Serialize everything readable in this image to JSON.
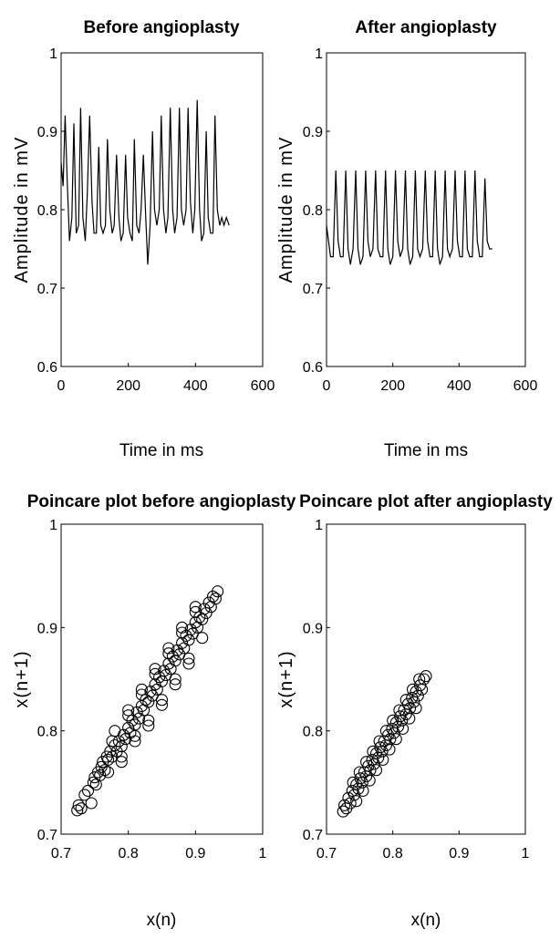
{
  "chart_data": [
    {
      "id": "before-signal",
      "type": "line",
      "title": "Before angioplasty",
      "xlabel": "Time in ms",
      "ylabel": "Amplitude in mV",
      "xlim": [
        0,
        600
      ],
      "ylim": [
        0.6,
        1
      ],
      "xticks": [
        "0",
        "200",
        "400",
        "600"
      ],
      "yticks": [
        "0.6",
        "0.7",
        "0.8",
        "0.9",
        "1"
      ],
      "grid": false,
      "series": [
        {
          "x": [
            0,
            6,
            12,
            18,
            25,
            32,
            38,
            45,
            52,
            58,
            65,
            72,
            78,
            85,
            92,
            98,
            105,
            112,
            118,
            125,
            132,
            138,
            145,
            152,
            158,
            165,
            172,
            178,
            185,
            192,
            198,
            205,
            212,
            218,
            225,
            232,
            238,
            245,
            252,
            258,
            265,
            272,
            278,
            285,
            292,
            298,
            305,
            312,
            318,
            325,
            332,
            338,
            345,
            352,
            358,
            365,
            372,
            378,
            385,
            392,
            398,
            405,
            412,
            418,
            425,
            432,
            438,
            445,
            452,
            458,
            465,
            472,
            478,
            485,
            492,
            500
          ],
          "y": [
            0.86,
            0.83,
            0.92,
            0.84,
            0.76,
            0.79,
            0.91,
            0.77,
            0.78,
            0.93,
            0.79,
            0.76,
            0.82,
            0.92,
            0.81,
            0.77,
            0.77,
            0.88,
            0.78,
            0.77,
            0.78,
            0.89,
            0.8,
            0.77,
            0.78,
            0.87,
            0.79,
            0.76,
            0.77,
            0.87,
            0.79,
            0.77,
            0.76,
            0.89,
            0.78,
            0.77,
            0.8,
            0.87,
            0.79,
            0.73,
            0.78,
            0.9,
            0.8,
            0.78,
            0.8,
            0.92,
            0.8,
            0.77,
            0.79,
            0.93,
            0.8,
            0.77,
            0.79,
            0.93,
            0.8,
            0.78,
            0.8,
            0.93,
            0.81,
            0.77,
            0.8,
            0.94,
            0.8,
            0.76,
            0.77,
            0.9,
            0.79,
            0.77,
            0.77,
            0.92,
            0.8,
            0.78,
            0.79,
            0.78,
            0.79,
            0.78
          ]
        }
      ]
    },
    {
      "id": "after-signal",
      "type": "line",
      "title": "After angioplasty",
      "xlabel": "Time in ms",
      "ylabel": "Amplitude in mV",
      "xlim": [
        0,
        600
      ],
      "ylim": [
        0.6,
        1
      ],
      "xticks": [
        "0",
        "200",
        "400",
        "600"
      ],
      "yticks": [
        "0.6",
        "0.7",
        "0.8",
        "0.9",
        "1"
      ],
      "grid": false,
      "series": [
        {
          "x": [
            0,
            6,
            12,
            20,
            28,
            35,
            42,
            50,
            58,
            65,
            72,
            80,
            88,
            95,
            102,
            110,
            118,
            125,
            132,
            140,
            148,
            155,
            162,
            170,
            178,
            185,
            192,
            200,
            208,
            215,
            222,
            230,
            238,
            245,
            252,
            260,
            268,
            275,
            282,
            290,
            298,
            305,
            312,
            320,
            328,
            335,
            342,
            350,
            358,
            365,
            372,
            380,
            388,
            395,
            402,
            410,
            418,
            425,
            432,
            440,
            448,
            455,
            462,
            470,
            478,
            485,
            492,
            500
          ],
          "y": [
            0.78,
            0.76,
            0.74,
            0.74,
            0.85,
            0.76,
            0.74,
            0.74,
            0.85,
            0.75,
            0.73,
            0.75,
            0.85,
            0.75,
            0.73,
            0.74,
            0.85,
            0.76,
            0.74,
            0.75,
            0.85,
            0.75,
            0.74,
            0.74,
            0.85,
            0.75,
            0.73,
            0.74,
            0.85,
            0.76,
            0.74,
            0.75,
            0.85,
            0.75,
            0.73,
            0.74,
            0.85,
            0.75,
            0.74,
            0.75,
            0.85,
            0.76,
            0.74,
            0.74,
            0.85,
            0.75,
            0.73,
            0.74,
            0.85,
            0.75,
            0.74,
            0.75,
            0.85,
            0.76,
            0.74,
            0.74,
            0.85,
            0.75,
            0.74,
            0.74,
            0.85,
            0.76,
            0.74,
            0.74,
            0.84,
            0.76,
            0.75,
            0.75
          ]
        }
      ]
    },
    {
      "id": "before-poincare",
      "type": "scatter",
      "title": "Poincare plot before angioplasty",
      "xlabel": "x(n)",
      "ylabel": "x(n+1)",
      "xlim": [
        0.7,
        1
      ],
      "ylim": [
        0.7,
        1
      ],
      "xticks": [
        "0.7",
        "0.8",
        "0.9",
        "1"
      ],
      "yticks": [
        "0.7",
        "0.8",
        "0.9",
        "1"
      ],
      "grid": false,
      "marker": "circle",
      "series": [
        {
          "x": [
            0.724,
            0.726,
            0.73,
            0.735,
            0.74,
            0.745,
            0.748,
            0.75,
            0.752,
            0.755,
            0.758,
            0.76,
            0.762,
            0.765,
            0.768,
            0.77,
            0.773,
            0.776,
            0.78,
            0.783,
            0.786,
            0.79,
            0.793,
            0.796,
            0.8,
            0.803,
            0.806,
            0.81,
            0.813,
            0.816,
            0.82,
            0.823,
            0.826,
            0.83,
            0.833,
            0.836,
            0.84,
            0.843,
            0.846,
            0.85,
            0.853,
            0.856,
            0.86,
            0.863,
            0.866,
            0.87,
            0.873,
            0.876,
            0.88,
            0.883,
            0.886,
            0.89,
            0.893,
            0.896,
            0.9,
            0.903,
            0.906,
            0.91,
            0.913,
            0.916,
            0.92,
            0.923,
            0.926,
            0.93,
            0.933,
            0.776,
            0.79,
            0.8,
            0.81,
            0.82,
            0.83,
            0.84,
            0.85,
            0.86,
            0.87,
            0.88,
            0.89,
            0.9,
            0.91,
            0.77,
            0.78,
            0.79,
            0.8,
            0.81,
            0.82,
            0.83,
            0.84,
            0.85,
            0.86,
            0.87,
            0.88,
            0.89,
            0.9
          ],
          "y": [
            0.723,
            0.728,
            0.725,
            0.738,
            0.742,
            0.73,
            0.75,
            0.755,
            0.748,
            0.76,
            0.757,
            0.765,
            0.77,
            0.762,
            0.775,
            0.772,
            0.78,
            0.775,
            0.786,
            0.78,
            0.79,
            0.785,
            0.796,
            0.792,
            0.803,
            0.798,
            0.81,
            0.806,
            0.818,
            0.812,
            0.824,
            0.82,
            0.83,
            0.828,
            0.838,
            0.834,
            0.845,
            0.84,
            0.852,
            0.848,
            0.858,
            0.854,
            0.865,
            0.86,
            0.872,
            0.868,
            0.878,
            0.874,
            0.885,
            0.88,
            0.892,
            0.888,
            0.898,
            0.894,
            0.905,
            0.9,
            0.91,
            0.908,
            0.918,
            0.914,
            0.924,
            0.92,
            0.93,
            0.928,
            0.935,
            0.79,
            0.775,
            0.815,
            0.795,
            0.835,
            0.81,
            0.855,
            0.83,
            0.875,
            0.85,
            0.895,
            0.87,
            0.915,
            0.89,
            0.76,
            0.8,
            0.77,
            0.82,
            0.79,
            0.84,
            0.805,
            0.86,
            0.825,
            0.88,
            0.845,
            0.9,
            0.865,
            0.92
          ]
        }
      ]
    },
    {
      "id": "after-poincare",
      "type": "scatter",
      "title": "Poincare plot after angioplasty",
      "xlabel": "x(n)",
      "ylabel": "x(n+1)",
      "xlim": [
        0.7,
        1
      ],
      "ylim": [
        0.7,
        1
      ],
      "xticks": [
        "0.7",
        "0.8",
        "0.9",
        "1"
      ],
      "yticks": [
        "0.7",
        "0.8",
        "0.9",
        "1"
      ],
      "grid": false,
      "marker": "circle",
      "series": [
        {
          "x": [
            0.725,
            0.727,
            0.73,
            0.733,
            0.736,
            0.739,
            0.742,
            0.745,
            0.748,
            0.751,
            0.754,
            0.757,
            0.76,
            0.763,
            0.766,
            0.769,
            0.772,
            0.775,
            0.778,
            0.781,
            0.784,
            0.787,
            0.79,
            0.793,
            0.796,
            0.799,
            0.802,
            0.805,
            0.808,
            0.811,
            0.814,
            0.817,
            0.82,
            0.823,
            0.826,
            0.829,
            0.832,
            0.835,
            0.838,
            0.841,
            0.844,
            0.847,
            0.85,
            0.74,
            0.75,
            0.76,
            0.77,
            0.78,
            0.79,
            0.8,
            0.81,
            0.82,
            0.83,
            0.84,
            0.745,
            0.755,
            0.765,
            0.775,
            0.785,
            0.795,
            0.805,
            0.815,
            0.825,
            0.835
          ],
          "y": [
            0.722,
            0.728,
            0.725,
            0.735,
            0.73,
            0.742,
            0.738,
            0.748,
            0.744,
            0.754,
            0.75,
            0.76,
            0.756,
            0.766,
            0.762,
            0.772,
            0.768,
            0.778,
            0.774,
            0.784,
            0.78,
            0.79,
            0.786,
            0.796,
            0.792,
            0.802,
            0.798,
            0.808,
            0.804,
            0.814,
            0.81,
            0.82,
            0.816,
            0.826,
            0.822,
            0.832,
            0.828,
            0.838,
            0.834,
            0.844,
            0.84,
            0.85,
            0.853,
            0.75,
            0.76,
            0.77,
            0.78,
            0.79,
            0.8,
            0.81,
            0.82,
            0.83,
            0.84,
            0.85,
            0.732,
            0.742,
            0.752,
            0.762,
            0.772,
            0.782,
            0.792,
            0.802,
            0.812,
            0.822
          ]
        }
      ]
    }
  ]
}
